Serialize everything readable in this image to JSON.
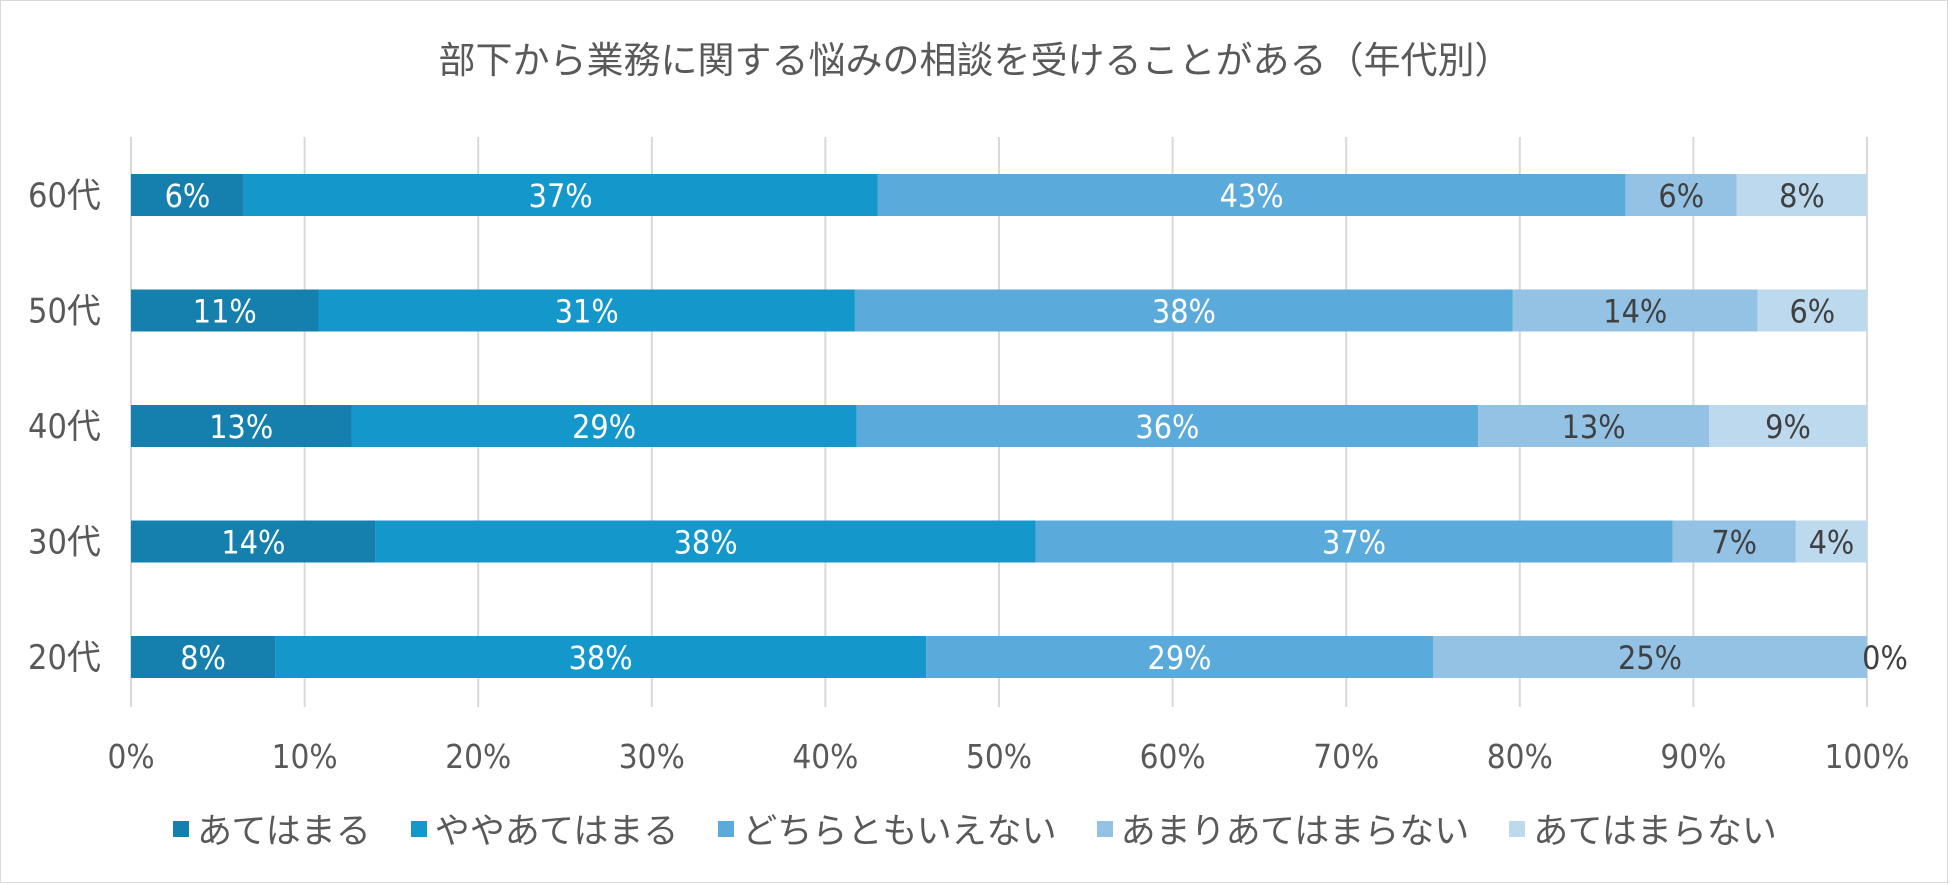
{
  "chart_data": {
    "type": "bar",
    "orientation": "horizontal",
    "stacked": true,
    "title": "部下から業務に関する悩みの相談を受けることがある（年代別）",
    "categories": [
      "60代",
      "50代",
      "40代",
      "30代",
      "20代"
    ],
    "series": [
      {
        "name": "あてはまる",
        "color": "#157fae",
        "values": [
          6.5,
          10.8,
          12.7,
          14.1,
          8.3
        ],
        "labels": [
          "6%",
          "11%",
          "13%",
          "14%",
          "8%"
        ],
        "label_color": "#ffffff"
      },
      {
        "name": "ややあてはまる",
        "color": "#1497cb",
        "values": [
          36.5,
          30.9,
          29.1,
          38.0,
          37.5
        ],
        "labels": [
          "37%",
          "31%",
          "29%",
          "38%",
          "38%"
        ],
        "label_color": "#ffffff"
      },
      {
        "name": "どちらともいえない",
        "color": "#5aaadb",
        "values": [
          43.1,
          37.9,
          35.8,
          36.7,
          29.2
        ],
        "labels": [
          "43%",
          "38%",
          "36%",
          "37%",
          "29%"
        ],
        "label_color": "#ffffff"
      },
      {
        "name": "あまりあてはまらない",
        "color": "#93c2e5",
        "values": [
          6.4,
          14.1,
          13.3,
          7.1,
          25.0
        ],
        "labels": [
          "6%",
          "14%",
          "13%",
          "7%",
          "25%"
        ],
        "label_color": "#404040"
      },
      {
        "name": "あてはまらない",
        "color": "#bcd9ee",
        "values": [
          7.5,
          6.3,
          9.1,
          4.1,
          0.0
        ],
        "labels": [
          "8%",
          "6%",
          "9%",
          "4%",
          "0%"
        ],
        "label_color": "#404040"
      }
    ],
    "xlim": [
      0,
      100
    ],
    "xticks": [
      "0%",
      "10%",
      "20%",
      "30%",
      "40%",
      "50%",
      "60%",
      "70%",
      "80%",
      "90%",
      "100%"
    ],
    "grid": true,
    "legend_position": "bottom"
  }
}
